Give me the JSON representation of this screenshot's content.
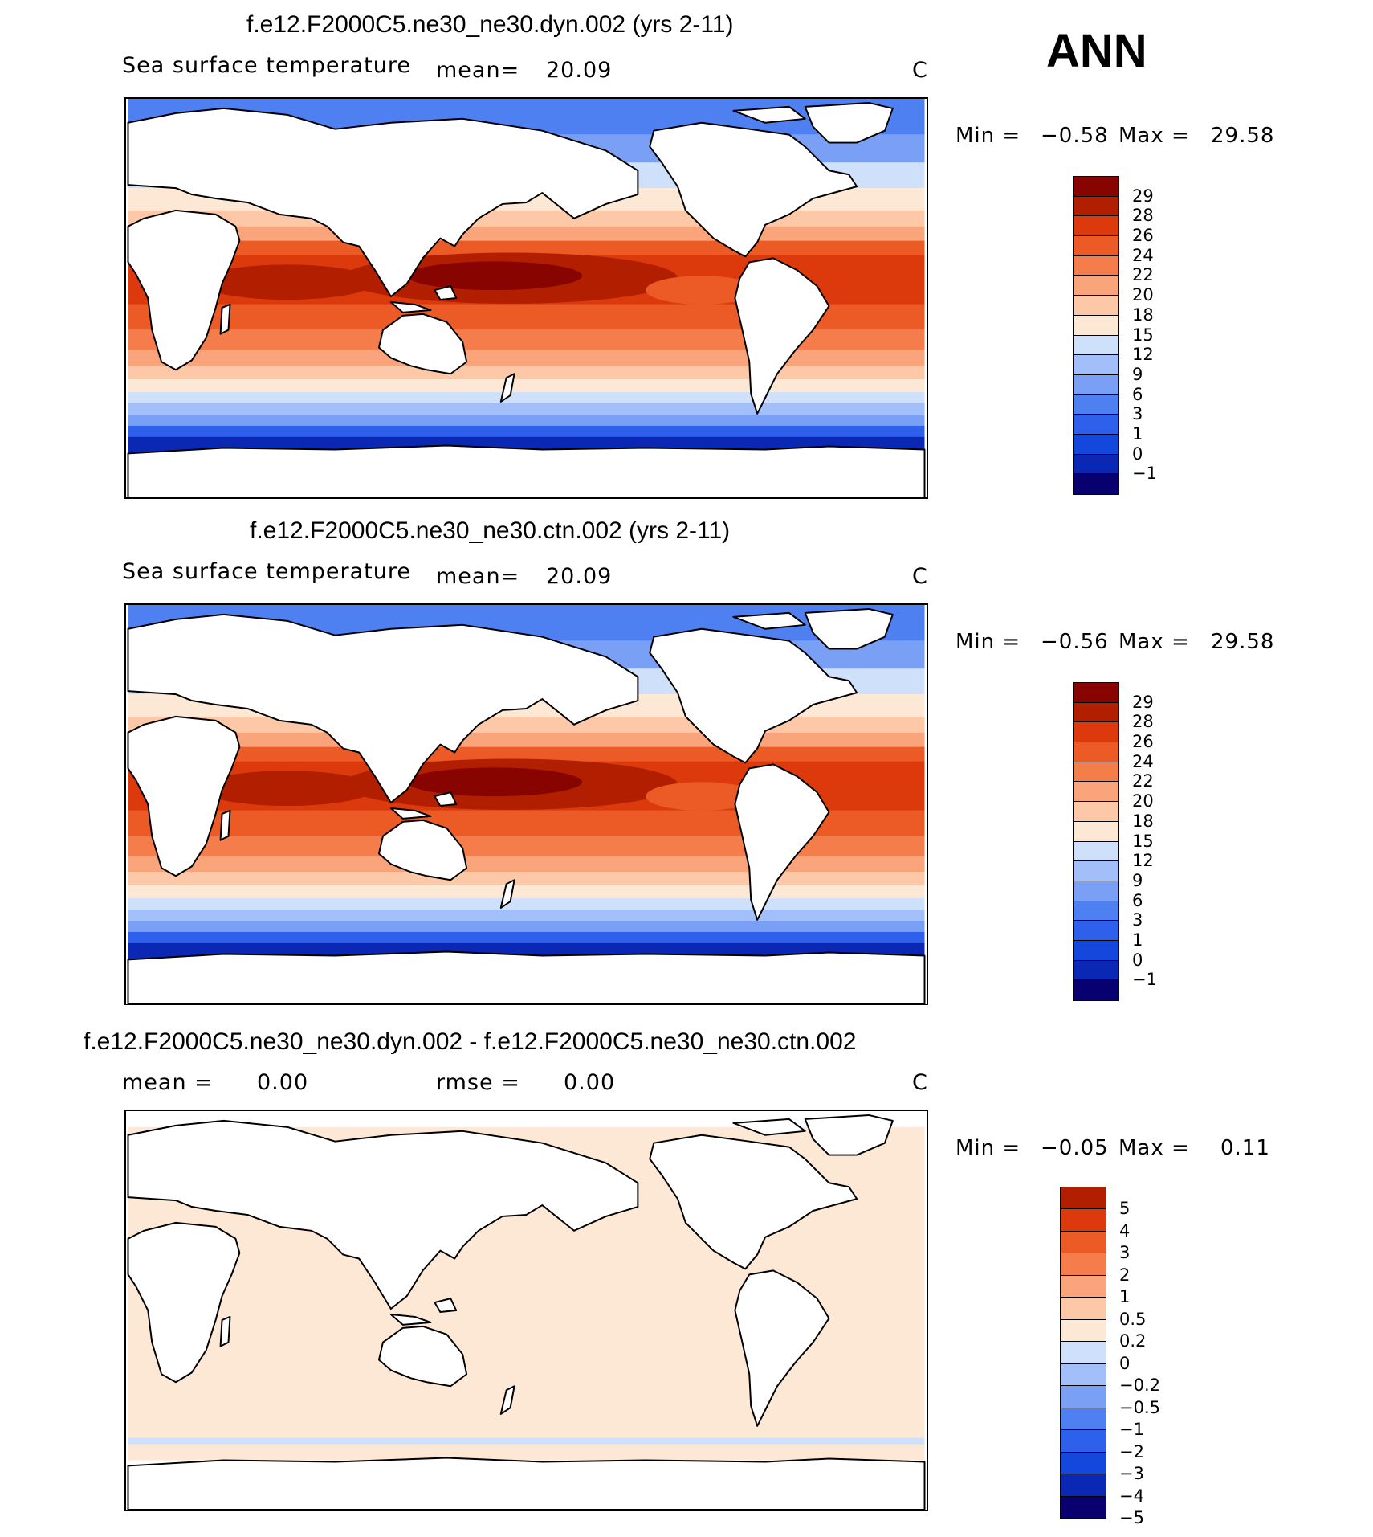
{
  "season": "ANN",
  "palette": {
    "abs": [
      "#08006e",
      "#0a28b4",
      "#1447dc",
      "#2e60ec",
      "#4f80f2",
      "#7aa0f6",
      "#a3bff9",
      "#cfe0fb",
      "#fde8d6",
      "#fcc8a8",
      "#f9a47a",
      "#f57d4c",
      "#ec5a25",
      "#dc3a0c",
      "#b21e00",
      "#870400"
    ],
    "diff": [
      "#08006e",
      "#0a28b4",
      "#1447dc",
      "#2e60ec",
      "#4f80f2",
      "#7aa0f6",
      "#a3bff9",
      "#cfe0fb",
      "#fde8d6",
      "#fcc8a8",
      "#f9a47a",
      "#f57d4c",
      "#ec5a25",
      "#dc3a0c",
      "#b21e00"
    ]
  },
  "panels": [
    {
      "title": "f.e12.F2000C5.ne30_ne30.dyn.002 (yrs 2-11)",
      "left_label": "Sea surface temperature",
      "mean_label": "mean=",
      "mean_value": "20.09",
      "units": "C",
      "min_label": "Min =",
      "min_value": "−0.58",
      "max_label": "Max =",
      "max_value": "29.58",
      "levels": [
        "29",
        "28",
        "26",
        "24",
        "22",
        "20",
        "18",
        "15",
        "12",
        "9",
        "6",
        "3",
        "1",
        "0",
        "−1"
      ],
      "variant": "abs"
    },
    {
      "title": "f.e12.F2000C5.ne30_ne30.ctn.002 (yrs 2-11)",
      "left_label": "Sea surface temperature",
      "mean_label": "mean=",
      "mean_value": "20.09",
      "units": "C",
      "min_label": "Min =",
      "min_value": "−0.56",
      "max_label": "Max =",
      "max_value": "29.58",
      "levels": [
        "29",
        "28",
        "26",
        "24",
        "22",
        "20",
        "18",
        "15",
        "12",
        "9",
        "6",
        "3",
        "1",
        "0",
        "−1"
      ],
      "variant": "abs"
    },
    {
      "title": "f.e12.F2000C5.ne30_ne30.dyn.002 - f.e12.F2000C5.ne30_ne30.ctn.002",
      "mean_label": "mean =",
      "mean_value": "0.00",
      "rmse_label": "rmse =",
      "rmse_value": "0.00",
      "units": "C",
      "min_label": "Min =",
      "min_value": "−0.05",
      "max_label": "Max =",
      "max_value": "0.11",
      "levels": [
        "5",
        "4",
        "3",
        "2",
        "1",
        "0.5",
        "0.2",
        "0",
        "−0.2",
        "−0.5",
        "−1",
        "−2",
        "−3",
        "−4",
        "−5"
      ],
      "variant": "diff"
    }
  ]
}
